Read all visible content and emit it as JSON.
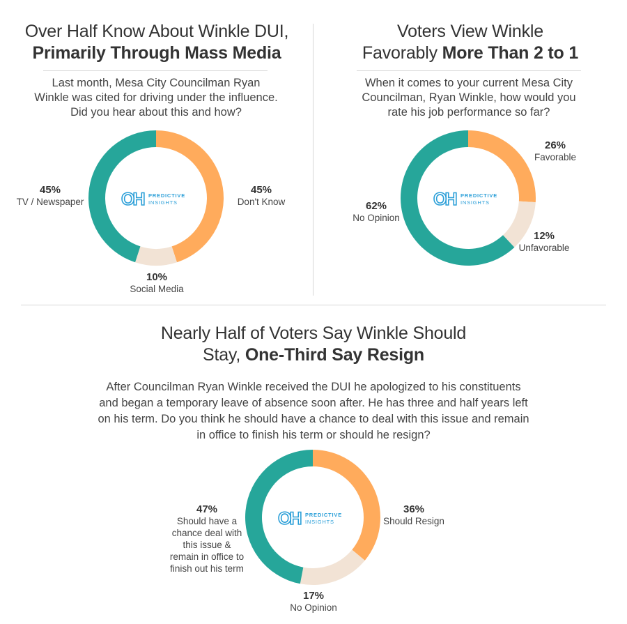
{
  "colors": {
    "teal": "#26a69a",
    "orange": "#ffab5c",
    "beige": "#f2e3d5",
    "logo": "#2b9fd8"
  },
  "logo": {
    "mark": "OH",
    "line1": "PREDICTIVE",
    "line2": "INSIGHTS"
  },
  "chart_data": [
    {
      "type": "pie",
      "title_regular": "Over Half Know About Winkle DUI,",
      "title_bold": "Primarily Through Mass Media",
      "question": "Last month, Mesa City Councilman Ryan Winkle was cited for driving under the influence. Did you hear about this and how?",
      "slices": [
        {
          "label": "Don't Know",
          "pct_label": "45%",
          "value": 45,
          "color": "#ffab5c"
        },
        {
          "label": "Social Media",
          "pct_label": "10%",
          "value": 10,
          "color": "#f2e3d5"
        },
        {
          "label": "TV / Newspaper",
          "pct_label": "45%",
          "value": 45,
          "color": "#26a69a"
        }
      ]
    },
    {
      "type": "pie",
      "title_regular": "Voters View Winkle",
      "title_mixed_regular": "Favorably ",
      "title_bold": "More Than 2 to 1",
      "question": "When it comes to your current Mesa City Councilman, Ryan Winkle, how would you rate his job performance so far?",
      "slices": [
        {
          "label": "Favorable",
          "pct_label": "26%",
          "value": 26,
          "color": "#ffab5c"
        },
        {
          "label": "Unfavorable",
          "pct_label": "12%",
          "value": 12,
          "color": "#f2e3d5"
        },
        {
          "label": "No Opinion",
          "pct_label": "62%",
          "value": 62,
          "color": "#26a69a"
        }
      ]
    },
    {
      "type": "pie",
      "title_regular": "Nearly Half of Voters Say Winkle Should",
      "title_mixed_regular": "Stay, ",
      "title_bold": "One-Third Say Resign",
      "question": "After Councilman Ryan Winkle received the DUI he apologized to his constituents and began a temporary leave of absence soon after. He has three and half years left on his term. Do you think he should have a chance to deal with this issue and remain in office to finish his term or should he resign?",
      "slices": [
        {
          "label": "Should Resign",
          "pct_label": "36%",
          "value": 36,
          "color": "#ffab5c"
        },
        {
          "label": "No Opinion",
          "pct_label": "17%",
          "value": 17,
          "color": "#f2e3d5"
        },
        {
          "label": "Should have a chance deal with this issue & remain in office to finish out his term",
          "pct_label": "47%",
          "value": 47,
          "color": "#26a69a"
        }
      ]
    }
  ]
}
